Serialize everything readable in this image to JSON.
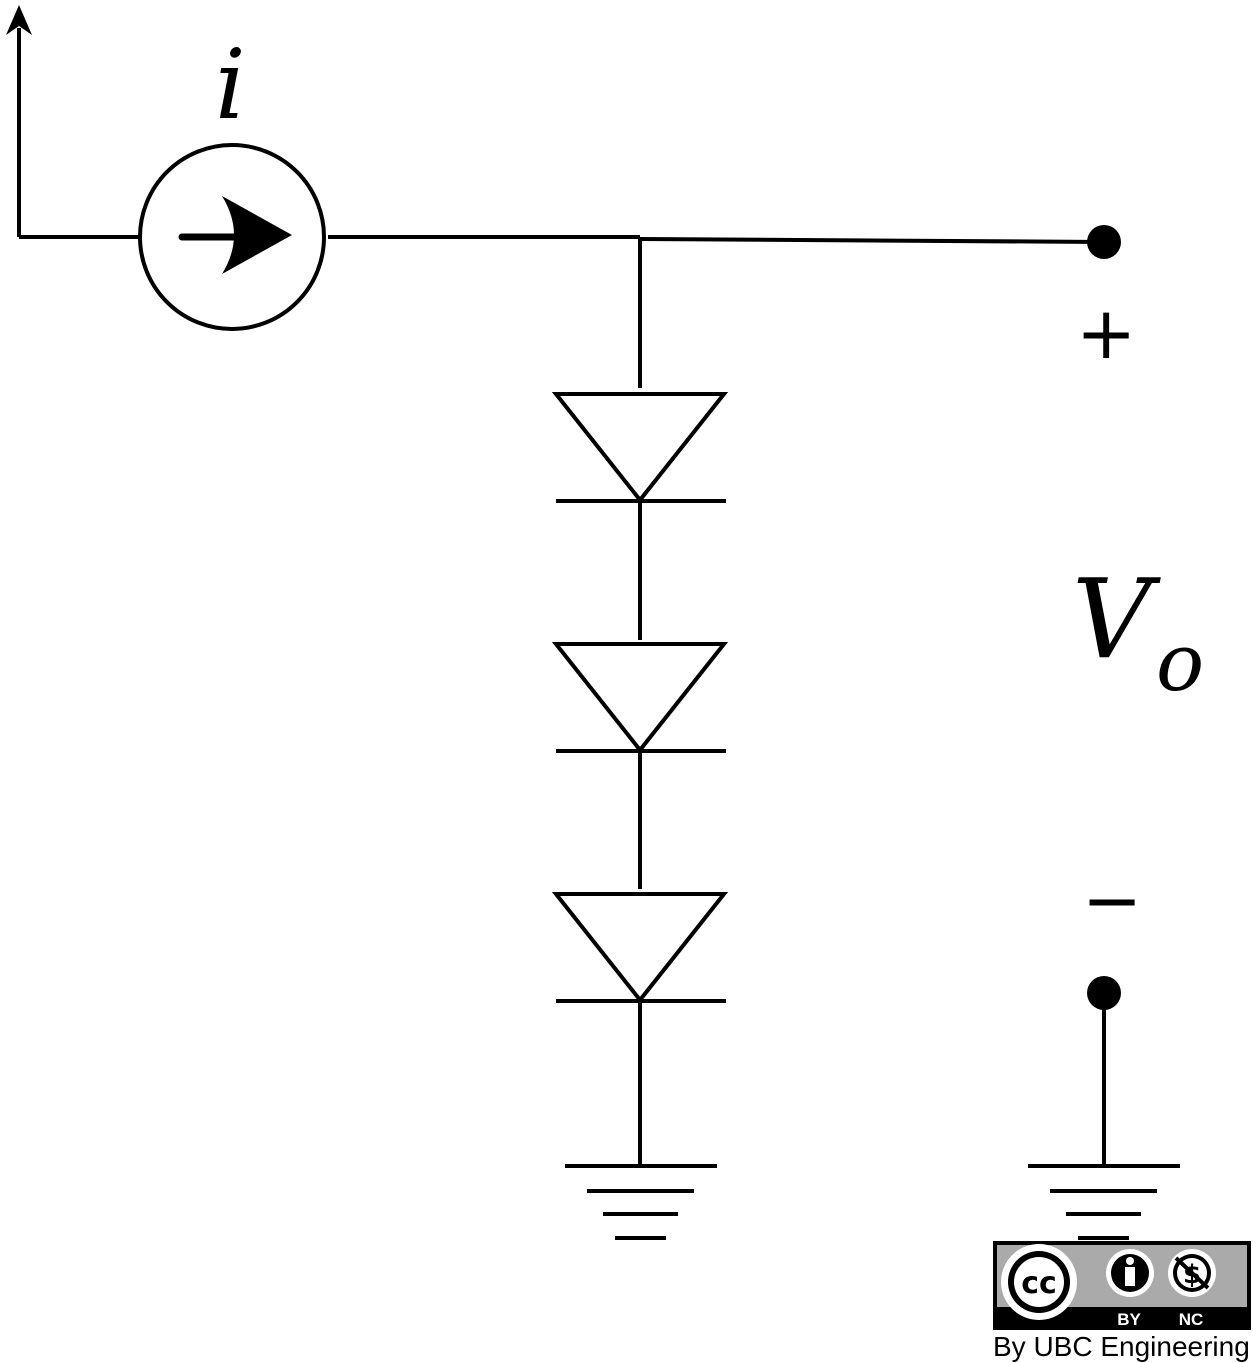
{
  "labels": {
    "current": "i",
    "output_voltage_main": "V",
    "output_voltage_sub": "o",
    "plus": "+",
    "minus": "−"
  },
  "license": {
    "cc": "cc",
    "by": "BY",
    "nc": "NC",
    "credit": "By UBC Engineering"
  },
  "components": {
    "current_source": "current-source",
    "diode_count": 3,
    "grounds": 2
  }
}
